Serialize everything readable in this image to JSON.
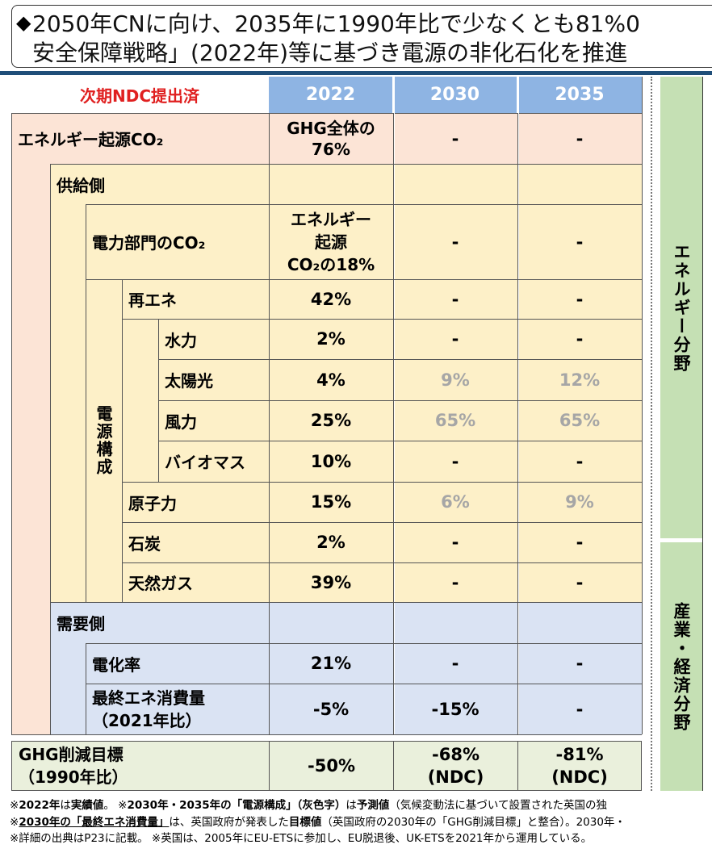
{
  "banner": {
    "bullet": "◆",
    "line1": "2050年CNに向け、2035年に1990年比で少なくとも81%0",
    "line2": "安全保障戦略」(2022年)等に基づき電源の非化石化を推進"
  },
  "table": {
    "label_corner": "次期NDC提出済",
    "years": [
      "2022",
      "2030",
      "2035"
    ],
    "rows": {
      "energy_co2": {
        "label": "エネルギー起源CO₂",
        "v2022": "GHG全体の\n76%",
        "v2030": "-",
        "v2035": "-"
      },
      "supply": {
        "label": "供給側"
      },
      "power_co2": {
        "label": "電力部門のCO₂",
        "v2022": "エネルギー\n起源\nCO₂の18%",
        "v2030": "-",
        "v2035": "-"
      },
      "renewables": {
        "label": "再エネ",
        "v2022": "42%",
        "v2030": "-",
        "v2035": "-"
      },
      "hydro": {
        "label": "水力",
        "v2022": "2%",
        "v2030": "-",
        "v2035": "-"
      },
      "solar": {
        "label": "太陽光",
        "v2022": "4%",
        "v2030": "9%",
        "v2035": "12%"
      },
      "wind": {
        "label": "風力",
        "v2022": "25%",
        "v2030": "65%",
        "v2035": "65%"
      },
      "biomass": {
        "label": "バイオマス",
        "v2022": "10%",
        "v2030": "-",
        "v2035": "-"
      },
      "nuclear": {
        "label": "原子力",
        "v2022": "15%",
        "v2030": "6%",
        "v2035": "9%"
      },
      "coal": {
        "label": "石炭",
        "v2022": "2%",
        "v2030": "-",
        "v2035": "-"
      },
      "gas": {
        "label": "天然ガス",
        "v2022": "39%",
        "v2030": "-",
        "v2035": "-"
      },
      "demand": {
        "label": "需要側"
      },
      "electrification": {
        "label": "電化率",
        "v2022": "21%",
        "v2030": "-",
        "v2035": "-"
      },
      "final_energy": {
        "label": "最終エネ消費量\n（2021年比）",
        "v2022": "-5%",
        "v2030": "-15%",
        "v2035": "-"
      },
      "ghg_target": {
        "label": "GHG削減目標\n（1990年比）",
        "v2022": "-50%",
        "v2030": "-68%\n(NDC)",
        "v2035": "-81%\n(NDC)"
      }
    },
    "power_mix_label": "電源構成"
  },
  "side": {
    "energy": "エネルギー分野",
    "industry": "産業・経済分野"
  },
  "notes": {
    "n1_a": "※",
    "n1_b": "2022年",
    "n1_c": "は",
    "n1_d": "実績値",
    "n1_e": "。 ※",
    "n1_f": "2030年・2035年の「電源構成」（灰色字）",
    "n1_g": "は",
    "n1_h": "予測値",
    "n1_i": "（気候変動法に基づいて設置された英国の独",
    "n2_a": "※",
    "n2_b": "2030年の「最終エネ消費量」",
    "n2_c": "は、英国政府が発表した",
    "n2_d": "目標値",
    "n2_e": "（英国政府の2030年の「GHG削減目標」と整合）。2030年・",
    "n3": "※詳細の出典はP23に記載。 ※英国は、2005年にEU-ETSに参加し、EU脱退後、UK-ETSを2021年から運用している。"
  },
  "colors": {
    "header": "#8eb4e3",
    "supply": "#fdf0c8",
    "energy_row": "#fce4d6",
    "demand": "#dae3f3",
    "target": "#eaf0dc",
    "side": "#c5e0b4",
    "accent_red": "#e02020",
    "predicted_gray": "#a6a6a6"
  }
}
